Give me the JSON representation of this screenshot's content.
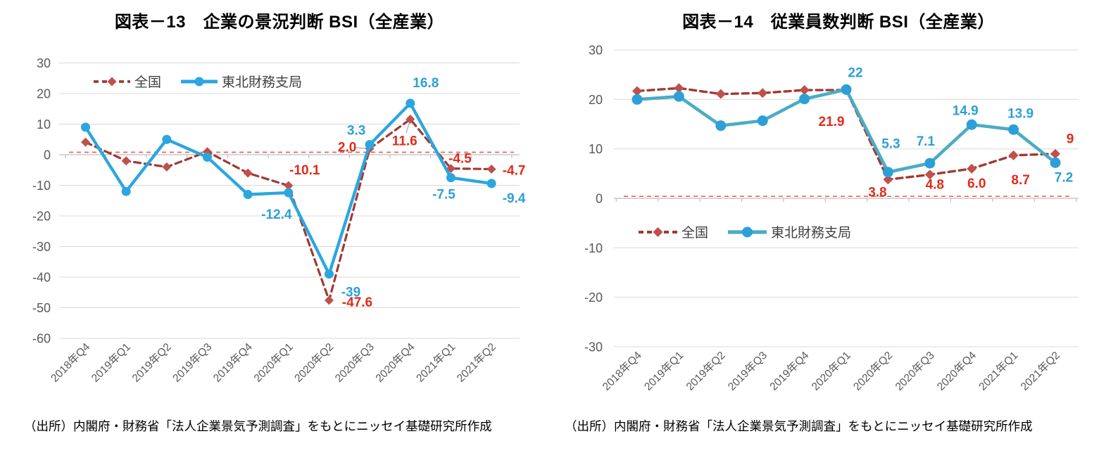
{
  "chart_data": [
    {
      "type": "line",
      "title": "図表－13　企業の景況判断 BSI（全産業）",
      "source_note": "（出所）内閣府・財務省「法人企業景気予測調査」をもとにニッセイ基礎研究所作成",
      "categories": [
        "2018年Q4",
        "2019年Q1",
        "2019年Q2",
        "2019年Q3",
        "2019年Q4",
        "2020年Q1",
        "2020年Q2",
        "2020年Q3",
        "2020年Q4",
        "2021年Q1",
        "2021年Q2"
      ],
      "ylim": [
        -60,
        30
      ],
      "ytick_step": 10,
      "grid": true,
      "legend_position": "inside-top-left",
      "reference_line": {
        "value": 0.8,
        "color": "#E2695C"
      },
      "series": [
        {
          "name": "全国",
          "line_style": "dashed",
          "color": "#9E3B33",
          "marker": "diamond",
          "marker_color": "#C0504D",
          "label_color": "#E02B1C",
          "values": [
            4.1,
            -2.0,
            -4.0,
            1.0,
            -6.0,
            -10.1,
            -47.6,
            2.0,
            11.6,
            -4.5,
            -4.7
          ],
          "point_labels": {
            "5": "-10.1",
            "6": "-47.6",
            "7": "2.0",
            "8": "11.6",
            "9": "-4.5",
            "10": "-4.7"
          }
        },
        {
          "name": "東北財務支局",
          "line_style": "solid",
          "color": "#2BA6DF",
          "marker": "circle",
          "marker_color": "#2BA6DF",
          "label_color": "#2E9FD6",
          "values": [
            9.0,
            -12.0,
            5.0,
            -0.8,
            -13.0,
            -12.4,
            -39.0,
            3.3,
            16.8,
            -7.5,
            -9.4
          ],
          "point_labels": {
            "5": "-12.4",
            "6": "-39",
            "7": "3.3",
            "8": "16.8",
            "9": "-7.5",
            "10": "-9.4"
          }
        }
      ]
    },
    {
      "type": "line",
      "title": "図表－14　従業員数判断 BSI（全産業）",
      "source_note": "（出所）内閣府・財務省「法人企業景気予測調査」をもとにニッセイ基礎研究所作成",
      "categories": [
        "2018年Q4",
        "2019年Q1",
        "2019年Q2",
        "2019年Q3",
        "2019年Q4",
        "2020年Q1",
        "2020年Q2",
        "2020年Q3",
        "2020年Q4",
        "2021年Q1",
        "2021年Q2"
      ],
      "ylim": [
        -30,
        30
      ],
      "ytick_step": 10,
      "grid": true,
      "legend_position": "inside-middle-left",
      "reference_line": {
        "value": 0.4,
        "color": "#E2695C"
      },
      "series": [
        {
          "name": "全国",
          "line_style": "dashed",
          "color": "#9E3B33",
          "marker": "diamond",
          "marker_color": "#C0504D",
          "label_color": "#E02B1C",
          "values": [
            21.7,
            22.3,
            21.1,
            21.3,
            21.9,
            21.9,
            3.8,
            4.8,
            6.0,
            8.7,
            9.0
          ],
          "point_labels": {
            "5": "21.9",
            "6": "3.8",
            "7": "4.8",
            "8": "6.0",
            "9": "8.7",
            "10": "9"
          }
        },
        {
          "name": "東北財務支局",
          "line_style": "solid",
          "color": "#4BACC6",
          "marker": "circle",
          "marker_color": "#2D9FD8",
          "label_color": "#2E9FD6",
          "values": [
            20.0,
            20.6,
            14.7,
            15.7,
            20.1,
            22.0,
            5.3,
            7.1,
            14.9,
            13.9,
            7.2
          ],
          "point_labels": {
            "5": "22",
            "6": "5.3",
            "7": "7.1",
            "8": "14.9",
            "9": "13.9",
            "10": "7.2"
          }
        }
      ]
    }
  ]
}
